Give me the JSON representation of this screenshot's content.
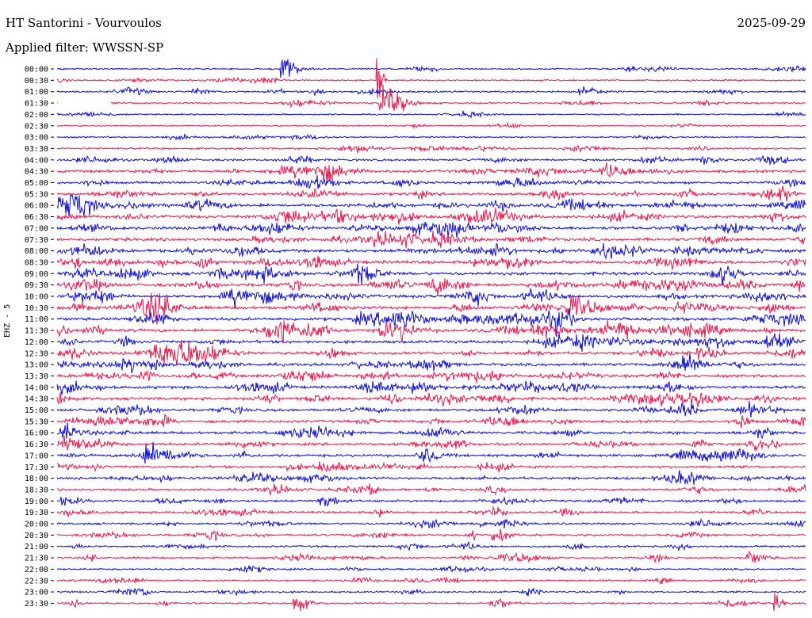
{
  "header": {
    "station": "HT Santorini - Vourvoulos",
    "date": "2025-09-29",
    "filter_label": "Applied filter: WWSSN-SP"
  },
  "channel_label": "EHZ - 5",
  "colors": {
    "even_trace": "#1010d0",
    "odd_trace": "#e8184f",
    "background": "#ffffff"
  },
  "chart_data": {
    "type": "line",
    "title": "HT Santorini - Vourvoulos",
    "ylabel": "EHZ - 5",
    "xlabel": "",
    "grid": false,
    "y_tick_labels": [
      "00:00",
      "00:30",
      "01:00",
      "01:30",
      "02:00",
      "02:30",
      "03:00",
      "03:30",
      "04:00",
      "04:30",
      "05:00",
      "05:30",
      "06:00",
      "06:30",
      "07:00",
      "07:30",
      "08:00",
      "08:30",
      "09:00",
      "09:30",
      "10:00",
      "10:30",
      "11:00",
      "11:30",
      "12:00",
      "12:30",
      "13:00",
      "13:30",
      "14:00",
      "14:30",
      "15:00",
      "15:30",
      "16:00",
      "16:30",
      "17:00",
      "17:30",
      "18:00",
      "18:30",
      "19:00",
      "19:30",
      "20:00",
      "20:30",
      "21:00",
      "21:30",
      "22:00",
      "22:30",
      "23:00",
      "23:30"
    ],
    "trace_noise_level": [
      0.3,
      0.3,
      0.4,
      0.3,
      0.2,
      0.2,
      0.3,
      0.4,
      0.6,
      0.8,
      0.7,
      0.8,
      1.0,
      1.0,
      1.0,
      1.0,
      1.0,
      1.0,
      1.0,
      1.0,
      1.0,
      1.0,
      1.0,
      1.0,
      0.9,
      0.9,
      0.9,
      0.9,
      0.9,
      0.9,
      0.8,
      0.8,
      0.8,
      0.8,
      0.8,
      0.7,
      0.7,
      0.6,
      0.6,
      0.6,
      0.5,
      0.5,
      0.5,
      0.5,
      0.4,
      0.4,
      0.4,
      0.4
    ],
    "events": [
      {
        "trace": 0,
        "minute": 9.0,
        "amplitude": 14,
        "duration": 1.0
      },
      {
        "trace": 1,
        "minute": 12.9,
        "amplitude": 30,
        "duration": 0.3
      },
      {
        "trace": 3,
        "minute": 13.0,
        "amplitude": 20,
        "duration": 1.5
      },
      {
        "trace": 2,
        "minute": 2.9,
        "amplitude": 5,
        "duration": 1.0
      },
      {
        "trace": 2,
        "minute": 5.5,
        "amplitude": 4,
        "duration": 1.0
      },
      {
        "trace": 2,
        "minute": 21.0,
        "amplitude": 4,
        "duration": 1.0
      },
      {
        "trace": 23,
        "minute": 13.0,
        "amplitude": 9,
        "duration": 2.0
      },
      {
        "trace": 22,
        "minute": 20.0,
        "amplitude": 10,
        "duration": 1.0
      },
      {
        "trace": 34,
        "minute": 3.5,
        "amplitude": 8,
        "duration": 2.0
      },
      {
        "trace": 38,
        "minute": 10.5,
        "amplitude": 7,
        "duration": 1.0
      },
      {
        "trace": 41,
        "minute": 17.5,
        "amplitude": 9,
        "duration": 1.0
      },
      {
        "trace": 43,
        "minute": 27.7,
        "amplitude": 9,
        "duration": 1.0
      },
      {
        "trace": 47,
        "minute": 9.5,
        "amplitude": 10,
        "duration": 1.0
      },
      {
        "trace": 47,
        "minute": 28.8,
        "amplitude": 10,
        "duration": 0.5
      },
      {
        "trace": 21,
        "minute": 20.5,
        "amplitude": 10,
        "duration": 1.0
      },
      {
        "trace": 21,
        "minute": 28.5,
        "amplitude": 8,
        "duration": 1.0
      }
    ]
  }
}
